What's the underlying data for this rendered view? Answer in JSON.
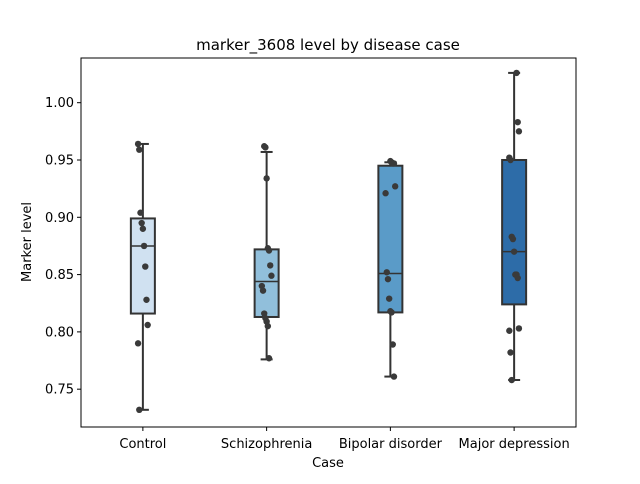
{
  "chart_data": {
    "type": "box",
    "title": "marker_3608 level by disease case",
    "xlabel": "Case",
    "ylabel": "Marker level",
    "ylim": [
      0.717,
      1.039
    ],
    "yticks": [
      0.75,
      0.8,
      0.85,
      0.9,
      0.95,
      1.0
    ],
    "ytick_labels": [
      "0.75",
      "0.80",
      "0.85",
      "0.90",
      "0.95",
      "1.00"
    ],
    "categories": [
      "Control",
      "Schizophrenia",
      "Bipolar disorder",
      "Major depression"
    ],
    "colors": [
      "#d0e1f1",
      "#91bfdb",
      "#5a9bc8",
      "#2d6ca8"
    ],
    "boxes": [
      {
        "whislo": 0.732,
        "q1": 0.816,
        "med": 0.875,
        "q3": 0.899,
        "whishi": 0.964
      },
      {
        "whislo": 0.776,
        "q1": 0.813,
        "med": 0.844,
        "q3": 0.872,
        "whishi": 0.957
      },
      {
        "whislo": 0.761,
        "q1": 0.817,
        "med": 0.851,
        "q3": 0.945,
        "whishi": 0.948
      },
      {
        "whislo": 0.758,
        "q1": 0.824,
        "med": 0.87,
        "q3": 0.95,
        "whishi": 1.026
      }
    ],
    "points": [
      [
        0.964,
        0.959,
        0.904,
        0.895,
        0.89,
        0.875,
        0.857,
        0.828,
        0.806,
        0.79,
        0.732
      ],
      [
        0.962,
        0.961,
        0.934,
        0.873,
        0.871,
        0.858,
        0.849,
        0.84,
        0.836,
        0.816,
        0.812,
        0.809,
        0.805,
        0.777
      ],
      [
        0.949,
        0.948,
        0.947,
        0.947,
        0.927,
        0.921,
        0.852,
        0.846,
        0.829,
        0.818,
        0.817,
        0.789,
        0.761
      ],
      [
        1.026,
        0.983,
        0.975,
        0.952,
        0.95,
        0.883,
        0.881,
        0.87,
        0.85,
        0.85,
        0.847,
        0.803,
        0.801,
        0.782,
        0.758
      ]
    ]
  }
}
